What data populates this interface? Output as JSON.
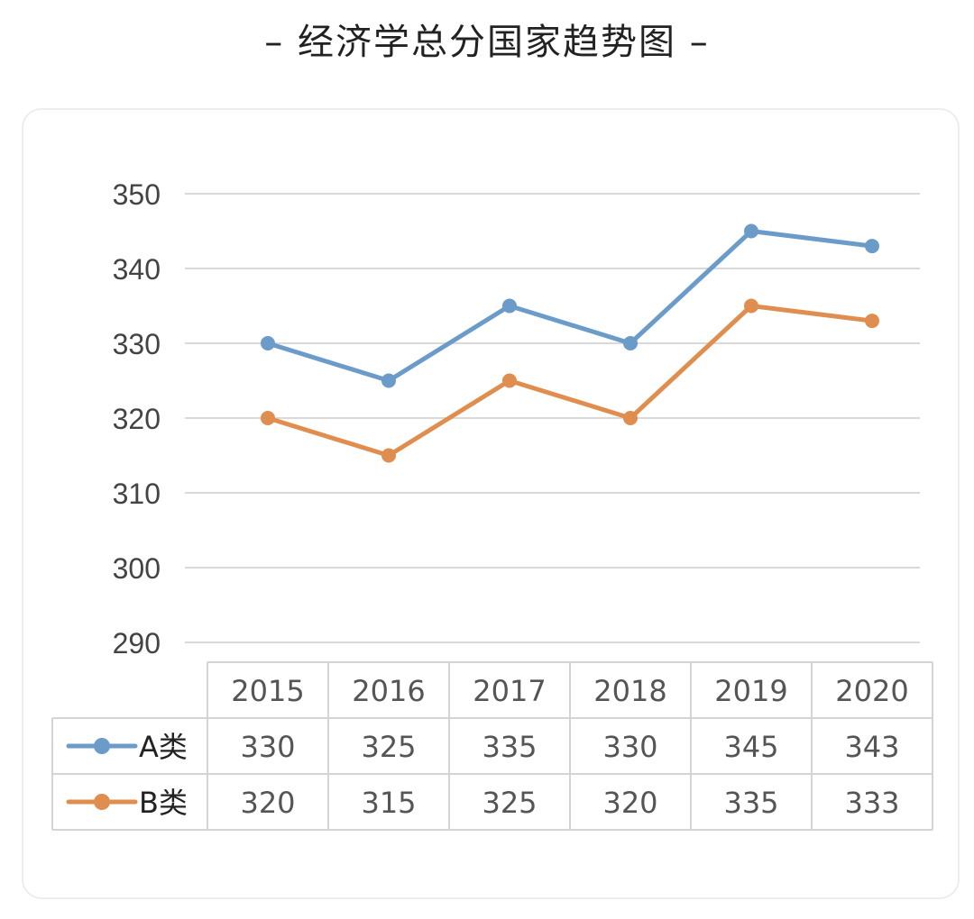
{
  "page": {
    "title": "– 经济学总分国家趋势图 –"
  },
  "colors": {
    "series_a": "#6b9bc9",
    "series_b": "#e08e4f",
    "grid": "#d9d9d9",
    "table_border": "#d4d4d4"
  },
  "chart_data": {
    "type": "line",
    "title": "经济学总分国家趋势图",
    "categories": [
      "2015",
      "2016",
      "2017",
      "2018",
      "2019",
      "2020"
    ],
    "series": [
      {
        "name": "A类",
        "values": [
          330,
          325,
          335,
          330,
          345,
          343
        ]
      },
      {
        "name": "B类",
        "values": [
          320,
          315,
          325,
          320,
          335,
          333
        ]
      }
    ],
    "ylim": [
      290,
      350
    ],
    "yticks": [
      350,
      340,
      330,
      320,
      310,
      300,
      290
    ],
    "grid": true,
    "legend": "data-table-left",
    "xlabel": "",
    "ylabel": ""
  }
}
